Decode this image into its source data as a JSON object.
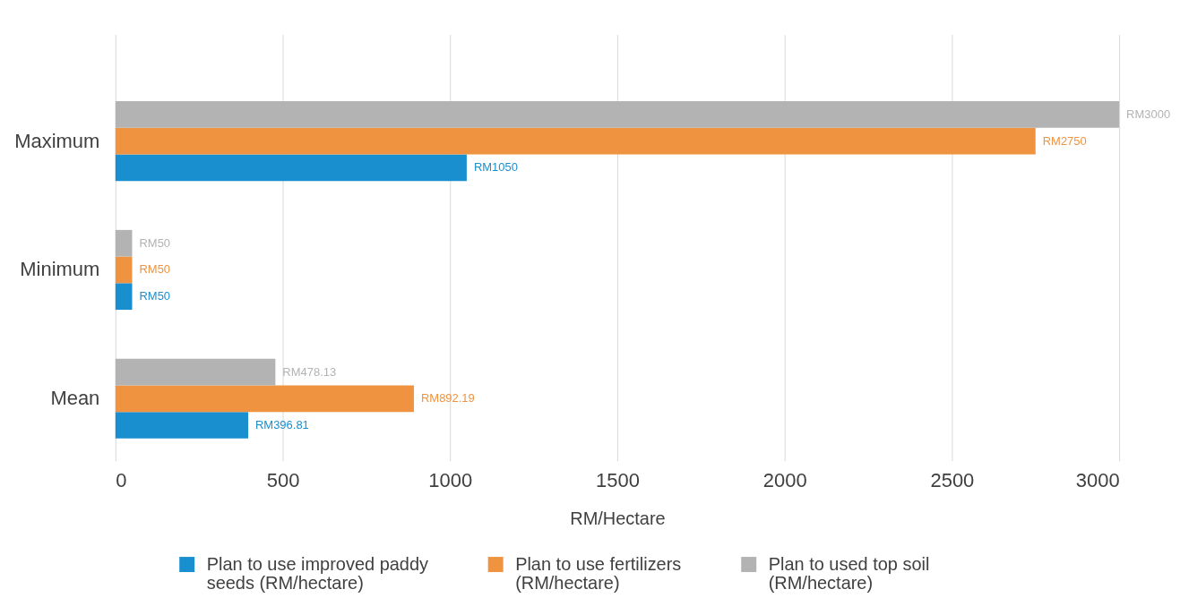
{
  "chart_data": {
    "type": "bar",
    "orientation": "horizontal",
    "categories": [
      "Maximum",
      "Minimum",
      "Mean"
    ],
    "series": [
      {
        "name": "Plan to use improved paddy seeds (RM/hectare)",
        "color": "#1a8fd0",
        "values": [
          1050,
          50,
          396.81
        ],
        "value_labels": [
          "RM1050",
          "RM50",
          "RM396.81"
        ]
      },
      {
        "name": "Plan to use fertilizers (RM/hectare)",
        "color": "#f09340",
        "values": [
          2750,
          50,
          892.19
        ],
        "value_labels": [
          "RM2750",
          "RM50",
          "RM892.19"
        ]
      },
      {
        "name": "Plan to used top soil (RM/hectare)",
        "color": "#b3b3b3",
        "values": [
          3000,
          50,
          478.13
        ],
        "value_labels": [
          "RM3000",
          "RM50",
          "RM478.13"
        ]
      }
    ],
    "xlabel": "RM/Hectare",
    "xlim": [
      0,
      3000
    ],
    "xticks": [
      0,
      500,
      1000,
      1500,
      2000,
      2500,
      3000
    ],
    "grid": "x",
    "legend": "bottom"
  }
}
